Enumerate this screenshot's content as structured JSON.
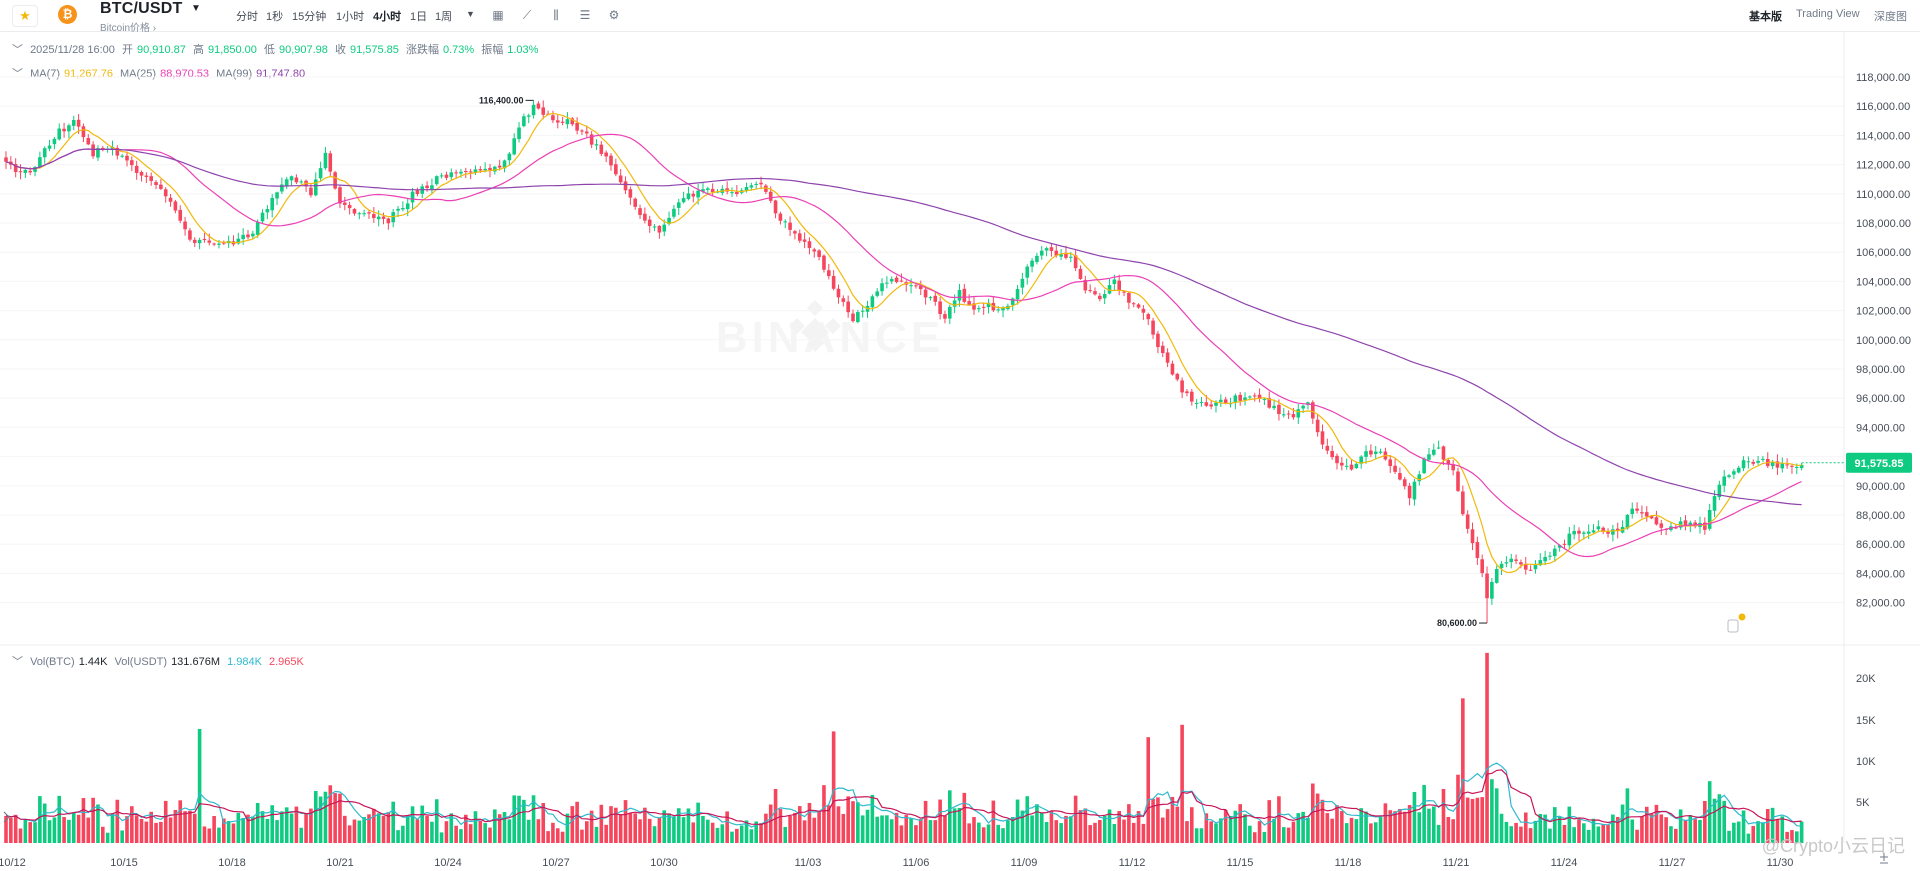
{
  "header": {
    "symbol": "BTC/USDT",
    "subtitle": "Bitcoin价格 ›",
    "intervals": [
      "分时",
      "1秒",
      "15分钟",
      "1小时",
      "4小时",
      "1日",
      "1周"
    ],
    "active_interval": "4小时",
    "tool_icons": [
      "calendar-icon",
      "line-chart-icon",
      "candlestick-icon",
      "settings-sliders-icon",
      "indicator-gear-icon"
    ],
    "views": [
      "基本版",
      "Trading View",
      "深度图"
    ],
    "active_view": "基本版"
  },
  "ohlc": {
    "datetime": "2025/11/28 16:00",
    "open_label": "开",
    "open": "90,910.87",
    "high_label": "高",
    "high": "91,850.00",
    "low_label": "低",
    "low": "90,907.98",
    "close_label": "收",
    "close": "91,575.85",
    "change_label": "涨跌幅",
    "change": "0.73%",
    "amplitude_label": "振幅",
    "amplitude": "1.03%"
  },
  "ma": {
    "ma7_label": "MA(7)",
    "ma7": "91,267.76",
    "ma25_label": "MA(25)",
    "ma25": "88,970.53",
    "ma99_label": "MA(99)",
    "ma99": "91,747.80"
  },
  "volume": {
    "btc_label": "Vol(BTC)",
    "btc": "1.44K",
    "usdt_label": "Vol(USDT)",
    "usdt": "131.676M",
    "ma1": "1.984K",
    "ma2": "2.965K"
  },
  "colors": {
    "up": "#0ecb81",
    "down": "#f6465d",
    "ma7": "#f0b90b",
    "ma25": "#eb40b5",
    "ma99": "#8e44ad",
    "vol_ma_short": "#2eb9ce",
    "vol_ma_long": "#c8155a"
  },
  "watermark": "BINANCE",
  "credit": "@Crypto小云日记",
  "chart_data": {
    "type": "candlestick",
    "price_axis": {
      "min": 80000,
      "max": 120000,
      "ticks": [
        "118,000.00",
        "116,000.00",
        "114,000.00",
        "112,000.00",
        "110,000.00",
        "108,000.00",
        "106,000.00",
        "104,000.00",
        "102,000.00",
        "100,000.00",
        "98,000.00",
        "96,000.00",
        "94,000.00",
        "92,000.00",
        "90,000.00",
        "88,000.00",
        "86,000.00",
        "84,000.00",
        "82,000.00"
      ]
    },
    "volume_axis": {
      "ticks": [
        "20K",
        "15K",
        "10K",
        "5K"
      ]
    },
    "x_ticks": [
      "10/12",
      "10/15",
      "10/18",
      "10/21",
      "10/24",
      "10/27",
      "10/30",
      "11/03",
      "11/06",
      "11/09",
      "11/12",
      "11/15",
      "11/18",
      "11/21",
      "11/24",
      "11/27",
      "11/30"
    ],
    "current_price": "91,575.85",
    "annotations": {
      "high": "116,400.00",
      "low": "80,600.00"
    },
    "close_anchors": [
      [
        0,
        112000
      ],
      [
        5,
        111300
      ],
      [
        10,
        114000
      ],
      [
        14,
        115000
      ],
      [
        18,
        112800
      ],
      [
        22,
        113200
      ],
      [
        27,
        111400
      ],
      [
        32,
        110500
      ],
      [
        38,
        106800
      ],
      [
        43,
        106500
      ],
      [
        47,
        106700
      ],
      [
        51,
        107200
      ],
      [
        55,
        109800
      ],
      [
        59,
        111200
      ],
      [
        63,
        110000
      ],
      [
        66,
        112800
      ],
      [
        69,
        109300
      ],
      [
        74,
        108500
      ],
      [
        79,
        108200
      ],
      [
        84,
        109900
      ],
      [
        89,
        111000
      ],
      [
        94,
        111400
      ],
      [
        99,
        111600
      ],
      [
        103,
        112100
      ],
      [
        106,
        114700
      ],
      [
        109,
        115900
      ],
      [
        113,
        115200
      ],
      [
        117,
        114800
      ],
      [
        120,
        113900
      ],
      [
        123,
        112800
      ],
      [
        127,
        111000
      ],
      [
        131,
        108600
      ],
      [
        135,
        107200
      ],
      [
        139,
        109600
      ],
      [
        143,
        110000
      ],
      [
        147,
        110300
      ],
      [
        152,
        110200
      ],
      [
        156,
        110600
      ],
      [
        160,
        108200
      ],
      [
        164,
        107000
      ],
      [
        168,
        105500
      ],
      [
        172,
        102800
      ],
      [
        175,
        101500
      ],
      [
        178,
        102500
      ],
      [
        181,
        103800
      ],
      [
        185,
        104200
      ],
      [
        188,
        103500
      ],
      [
        191,
        102800
      ],
      [
        194,
        101600
      ],
      [
        197,
        103200
      ],
      [
        200,
        102000
      ],
      [
        203,
        102300
      ],
      [
        207,
        102100
      ],
      [
        210,
        104400
      ],
      [
        213,
        106000
      ],
      [
        216,
        106100
      ],
      [
        220,
        105700
      ],
      [
        223,
        103300
      ],
      [
        226,
        102900
      ],
      [
        229,
        103900
      ],
      [
        232,
        102600
      ],
      [
        235,
        102000
      ],
      [
        238,
        99700
      ],
      [
        241,
        97500
      ],
      [
        244,
        96200
      ],
      [
        248,
        95300
      ],
      [
        252,
        95800
      ],
      [
        256,
        96100
      ],
      [
        260,
        95900
      ],
      [
        263,
        94900
      ],
      [
        266,
        94900
      ],
      [
        269,
        95500
      ],
      [
        272,
        92700
      ],
      [
        275,
        91700
      ],
      [
        278,
        90900
      ],
      [
        281,
        92300
      ],
      [
        284,
        92100
      ],
      [
        287,
        90900
      ],
      [
        290,
        89300
      ],
      [
        293,
        91900
      ],
      [
        296,
        92400
      ],
      [
        299,
        91100
      ],
      [
        301,
        87900
      ],
      [
        304,
        85300
      ],
      [
        306,
        82300
      ],
      [
        308,
        84400
      ],
      [
        311,
        85100
      ],
      [
        314,
        84200
      ],
      [
        318,
        84900
      ],
      [
        321,
        85900
      ],
      [
        324,
        86800
      ],
      [
        327,
        87100
      ],
      [
        330,
        87000
      ],
      [
        333,
        86700
      ],
      [
        336,
        88300
      ],
      [
        339,
        87900
      ],
      [
        342,
        87000
      ],
      [
        345,
        87300
      ],
      [
        348,
        87500
      ],
      [
        351,
        87100
      ],
      [
        354,
        90200
      ],
      [
        357,
        91200
      ],
      [
        360,
        91700
      ],
      [
        363,
        91600
      ],
      [
        366,
        91300
      ],
      [
        369,
        91400
      ],
      [
        371,
        91576
      ]
    ]
  }
}
